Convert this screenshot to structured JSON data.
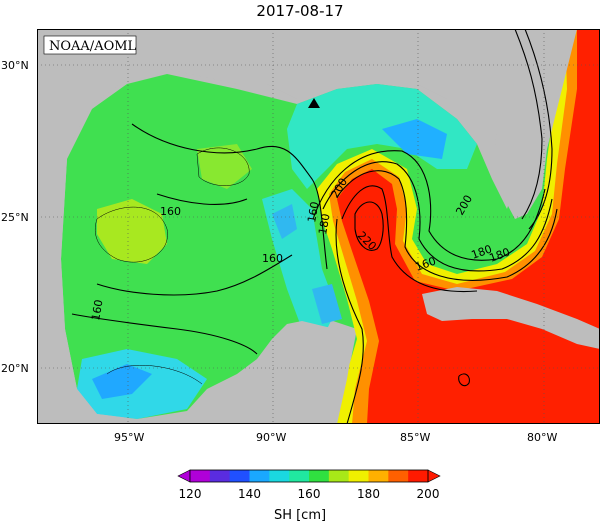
{
  "title": "2017-08-17",
  "credit": "NOAA/AOML",
  "lat_ticks": [
    "30°N",
    "25°N",
    "20°N"
  ],
  "lon_ticks": [
    "95°W",
    "90°W",
    "85°W",
    "80°W"
  ],
  "contour_labels": [
    "160",
    "160",
    "160",
    "160",
    "180",
    "180",
    "160",
    "200",
    "200",
    "220",
    "180"
  ],
  "colorbar": {
    "label": "SH [cm]",
    "ticks": [
      "120",
      "140",
      "160",
      "180",
      "200"
    ],
    "colors": [
      "#b000d8",
      "#5a2ce0",
      "#2050ff",
      "#1aa8ff",
      "#1ad8e0",
      "#20e8a0",
      "#30e040",
      "#a8e818",
      "#f0f000",
      "#ffb000",
      "#ff6000",
      "#ff1a00"
    ]
  },
  "marker": "triangle"
}
